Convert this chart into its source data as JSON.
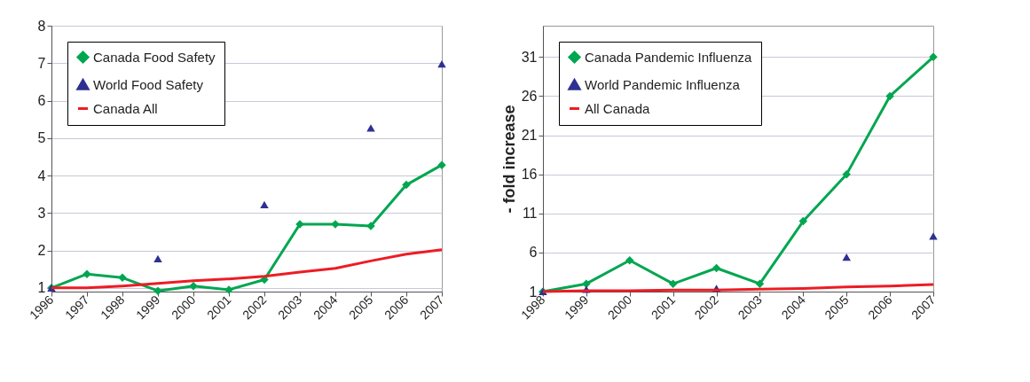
{
  "chart_data": [
    {
      "type": "line",
      "categories": [
        "1996",
        "1997",
        "1998",
        "1999",
        "2000",
        "2001",
        "2002",
        "2003",
        "2004",
        "2005",
        "2006",
        "2007"
      ],
      "ylim": [
        0.9,
        8
      ],
      "yticks": [
        1,
        2,
        3,
        4,
        5,
        6,
        7,
        8
      ],
      "grid": "y",
      "legend": "top left",
      "series": [
        {
          "name": "Canada Food Safety",
          "color": "#00a650",
          "marker": "diamond",
          "values": [
            1.0,
            1.37,
            1.27,
            0.92,
            1.05,
            0.95,
            1.22,
            2.7,
            2.7,
            2.65,
            3.75,
            4.28
          ]
        },
        {
          "name": "World Food Safety",
          "color": "#2e3192",
          "type": "scatter",
          "marker": "triangle",
          "values": [
            1.0,
            null,
            null,
            1.78,
            null,
            null,
            3.22,
            null,
            null,
            5.27,
            null,
            6.98
          ]
        },
        {
          "name": "Canada All",
          "color": "#ed1c24",
          "marker": "none",
          "values": [
            1.0,
            1.0,
            1.05,
            1.12,
            1.19,
            1.24,
            1.31,
            1.42,
            1.52,
            1.72,
            1.9,
            2.02
          ]
        }
      ]
    },
    {
      "type": "line",
      "categories": [
        "1998",
        "1999",
        "2000",
        "2001",
        "2002",
        "2003",
        "2004",
        "2005",
        "2006",
        "2007"
      ],
      "ylabel": "- fold increase",
      "ylim": [
        1,
        35
      ],
      "yticks": [
        1,
        6,
        11,
        16,
        21,
        26,
        31
      ],
      "grid": "y",
      "legend": "top left",
      "series": [
        {
          "name": "Canada Pandemic Influenza",
          "color": "#00a650",
          "marker": "diamond",
          "values": [
            1,
            2,
            5,
            2,
            4,
            2,
            10,
            16,
            26,
            31
          ]
        },
        {
          "name": "World Pandemic Influenza",
          "color": "#2e3192",
          "type": "scatter",
          "marker": "triangle",
          "values": [
            1,
            1.3,
            null,
            null,
            1.4,
            null,
            null,
            5.4,
            null,
            8.1
          ]
        },
        {
          "name": "All Canada",
          "color": "#ed1c24",
          "marker": "none",
          "values": [
            1,
            1.1,
            1.1,
            1.2,
            1.2,
            1.3,
            1.4,
            1.6,
            1.7,
            1.9
          ]
        }
      ]
    }
  ]
}
